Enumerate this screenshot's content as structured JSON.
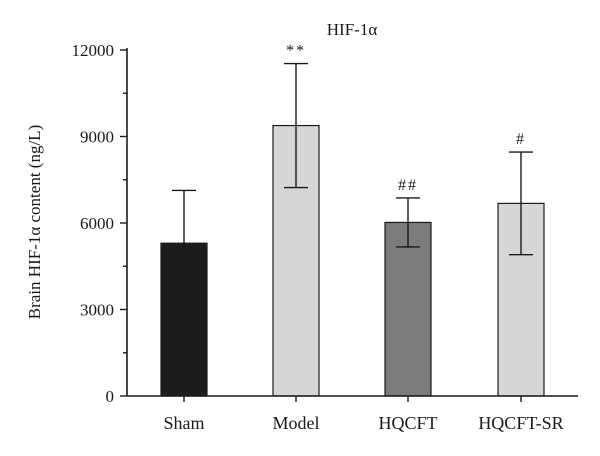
{
  "chart_data": {
    "type": "bar",
    "title": "HIF-1α",
    "ylabel": "Brain HIF-1α content (ng/L)",
    "xlabel": "",
    "categories": [
      "Sham",
      "Model",
      "HQCFT",
      "HQCFT-SR"
    ],
    "values": [
      5300,
      9380,
      6020,
      6680
    ],
    "error": [
      1830,
      2150,
      850,
      1780
    ],
    "annotations": [
      "",
      "**",
      "##",
      "#"
    ],
    "bar_colors": [
      "#1c1c1c",
      "#d6d6d6",
      "#7b7b7b",
      "#d6d6d6"
    ],
    "ylim": [
      0,
      12000
    ],
    "yticks": [
      0,
      3000,
      6000,
      9000,
      12000
    ],
    "grid": false,
    "legend": "none"
  }
}
